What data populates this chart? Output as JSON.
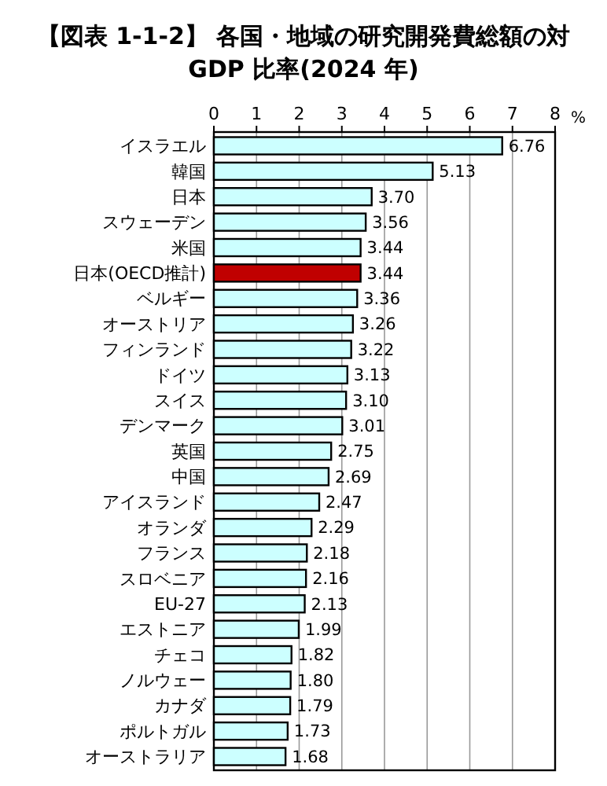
{
  "chart_data": {
    "type": "bar",
    "orientation": "horizontal",
    "title": "【図表 1-1-2】 各国・地域の研究開発費総額の対GDP 比率(2024 年)",
    "xlabel": "%",
    "categories": [
      "イスラエル",
      "韓国",
      "日本",
      "スウェーデン",
      "米国",
      "日本(OECD推計)",
      "ベルギー",
      "オーストリア",
      "フィンランド",
      "ドイツ",
      "スイス",
      "デンマーク",
      "英国",
      "中国",
      "アイスランド",
      "オランダ",
      "フランス",
      "スロベニア",
      "EU-27",
      "エストニア",
      "チェコ",
      "ノルウェー",
      "カナダ",
      "ポルトガル",
      "オーストラリア"
    ],
    "values": [
      6.76,
      5.13,
      3.7,
      3.56,
      3.44,
      3.44,
      3.36,
      3.26,
      3.22,
      3.13,
      3.1,
      3.01,
      2.75,
      2.69,
      2.47,
      2.29,
      2.18,
      2.16,
      2.13,
      1.99,
      1.82,
      1.8,
      1.79,
      1.73,
      1.68
    ],
    "value_labels": [
      "6.76",
      "5.13",
      "3.70",
      "3.56",
      "3.44",
      "3.44",
      "3.36",
      "3.26",
      "3.22",
      "3.13",
      "3.10",
      "3.01",
      "2.75",
      "2.69",
      "2.47",
      "2.29",
      "2.18",
      "2.16",
      "2.13",
      "1.99",
      "1.82",
      "1.80",
      "1.79",
      "1.73",
      "1.68"
    ],
    "colors": [
      "#ccffff",
      "#ccffff",
      "#ccffff",
      "#ccffff",
      "#ccffff",
      "#c00000",
      "#ccffff",
      "#ccffff",
      "#ccffff",
      "#ccffff",
      "#ccffff",
      "#ccffff",
      "#ccffff",
      "#ccffff",
      "#ccffff",
      "#ccffff",
      "#ccffff",
      "#ccffff",
      "#ccffff",
      "#ccffff",
      "#ccffff",
      "#ccffff",
      "#ccffff",
      "#ccffff",
      "#ccffff"
    ],
    "xlim": [
      0,
      8
    ],
    "xticks": [
      0,
      1,
      2,
      3,
      4,
      5,
      6,
      7,
      8
    ],
    "grid": "x"
  }
}
